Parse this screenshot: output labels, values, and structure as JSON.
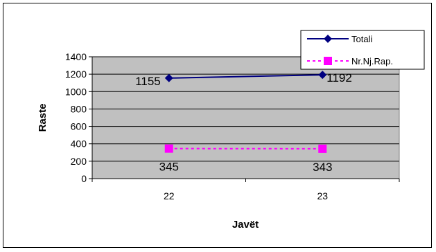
{
  "chart_data": {
    "type": "line",
    "categories": [
      "22",
      "23"
    ],
    "series": [
      {
        "name": "Totali",
        "values": [
          1155,
          1192
        ],
        "color": "#000080",
        "marker": "diamond",
        "line": "solid"
      },
      {
        "name": "Nr.Nj.Rap.",
        "values": [
          345,
          343
        ],
        "color": "#ff00ff",
        "marker": "square",
        "line": "dashed"
      }
    ],
    "xlabel": "Javët",
    "ylabel": "Raste",
    "ylim": [
      0,
      1400
    ],
    "yticks": [
      "0",
      "200",
      "400",
      "600",
      "800",
      "1000",
      "1200",
      "1400"
    ],
    "grid": true,
    "plot_background": "#c0c0c0",
    "legend": "top-right"
  }
}
